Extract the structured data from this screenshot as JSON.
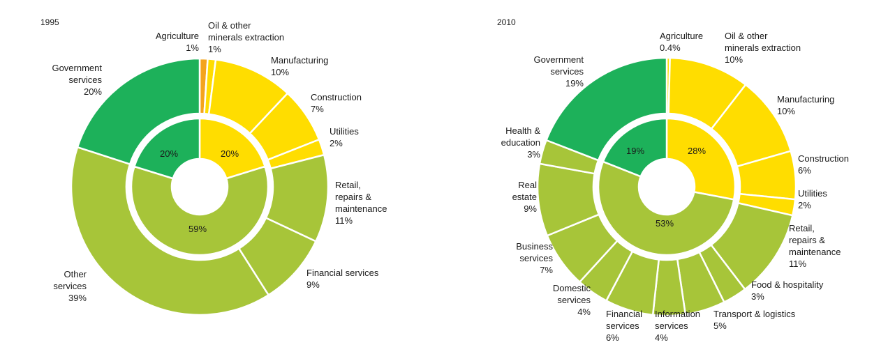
{
  "colors": {
    "yellow": "#FFDD00",
    "olive": "#A7C539",
    "green": "#1DB15A",
    "orange": "#F4A41C",
    "stroke": "#ffffff"
  },
  "chart_data": [
    {
      "type": "pie",
      "title": "1995",
      "inner": [
        {
          "value": 20,
          "label": "20%",
          "color": "yellow"
        },
        {
          "value": 59,
          "label": "59%",
          "color": "olive"
        },
        {
          "value": 20,
          "label": "20%",
          "color": "green"
        }
      ],
      "outer": [
        {
          "value": 1,
          "color": "orange",
          "label": [
            "Agriculture",
            "1%"
          ]
        },
        {
          "value": 1,
          "color": "yellow",
          "label": [
            "Oil & other",
            "minerals extraction",
            "1%"
          ]
        },
        {
          "value": 10,
          "color": "yellow",
          "label": [
            "Manufacturing",
            "10%"
          ]
        },
        {
          "value": 7,
          "color": "yellow",
          "label": [
            "Construction",
            "7%"
          ]
        },
        {
          "value": 2,
          "color": "yellow",
          "label": [
            "Utilities",
            "2%"
          ]
        },
        {
          "value": 11,
          "color": "olive",
          "label": [
            "Retail,",
            "repairs &",
            "maintenance",
            "11%"
          ]
        },
        {
          "value": 9,
          "color": "olive",
          "label": [
            "Financial services",
            "9%"
          ]
        },
        {
          "value": 39,
          "color": "olive",
          "label": [
            "Other",
            "services",
            "39%"
          ]
        },
        {
          "value": 20,
          "color": "green",
          "label": [
            "Government",
            "services",
            "20%"
          ]
        }
      ]
    },
    {
      "type": "pie",
      "title": "2010",
      "inner": [
        {
          "value": 28,
          "label": "28%",
          "color": "yellow"
        },
        {
          "value": 53,
          "label": "53%",
          "color": "olive"
        },
        {
          "value": 19,
          "label": "19%",
          "color": "green"
        }
      ],
      "outer": [
        {
          "value": 0.4,
          "color": "yellow",
          "label": [
            "Agriculture",
            "0.4%"
          ]
        },
        {
          "value": 10,
          "color": "yellow",
          "label": [
            "Oil & other",
            "minerals extraction",
            "10%"
          ]
        },
        {
          "value": 10,
          "color": "yellow",
          "label": [
            "Manufacturing",
            "10%"
          ]
        },
        {
          "value": 6,
          "color": "yellow",
          "label": [
            "Construction",
            "6%"
          ]
        },
        {
          "value": 2,
          "color": "yellow",
          "label": [
            "Utilities",
            "2%"
          ]
        },
        {
          "value": 11,
          "color": "olive",
          "label": [
            "Retail,",
            "repairs &",
            "maintenance",
            "11%"
          ]
        },
        {
          "value": 3,
          "color": "olive",
          "label": [
            "Food & hospitality",
            "3%"
          ]
        },
        {
          "value": 5,
          "color": "olive",
          "label": [
            "Transport & logistics",
            "5%"
          ]
        },
        {
          "value": 4,
          "color": "olive",
          "label": [
            "Information",
            "services",
            "4%"
          ]
        },
        {
          "value": 6,
          "color": "olive",
          "label": [
            "Financial",
            "services",
            "6%"
          ]
        },
        {
          "value": 4,
          "color": "olive",
          "label": [
            "Domestic",
            "services",
            "4%"
          ]
        },
        {
          "value": 7,
          "color": "olive",
          "label": [
            "Business",
            "services",
            "7%"
          ]
        },
        {
          "value": 9,
          "color": "olive",
          "label": [
            "Real",
            "estate",
            "9%"
          ]
        },
        {
          "value": 3,
          "color": "olive",
          "label": [
            "Health &",
            "education",
            "3%"
          ]
        },
        {
          "value": 19,
          "color": "green",
          "label": [
            "Government",
            "services",
            "19%"
          ]
        }
      ]
    }
  ]
}
